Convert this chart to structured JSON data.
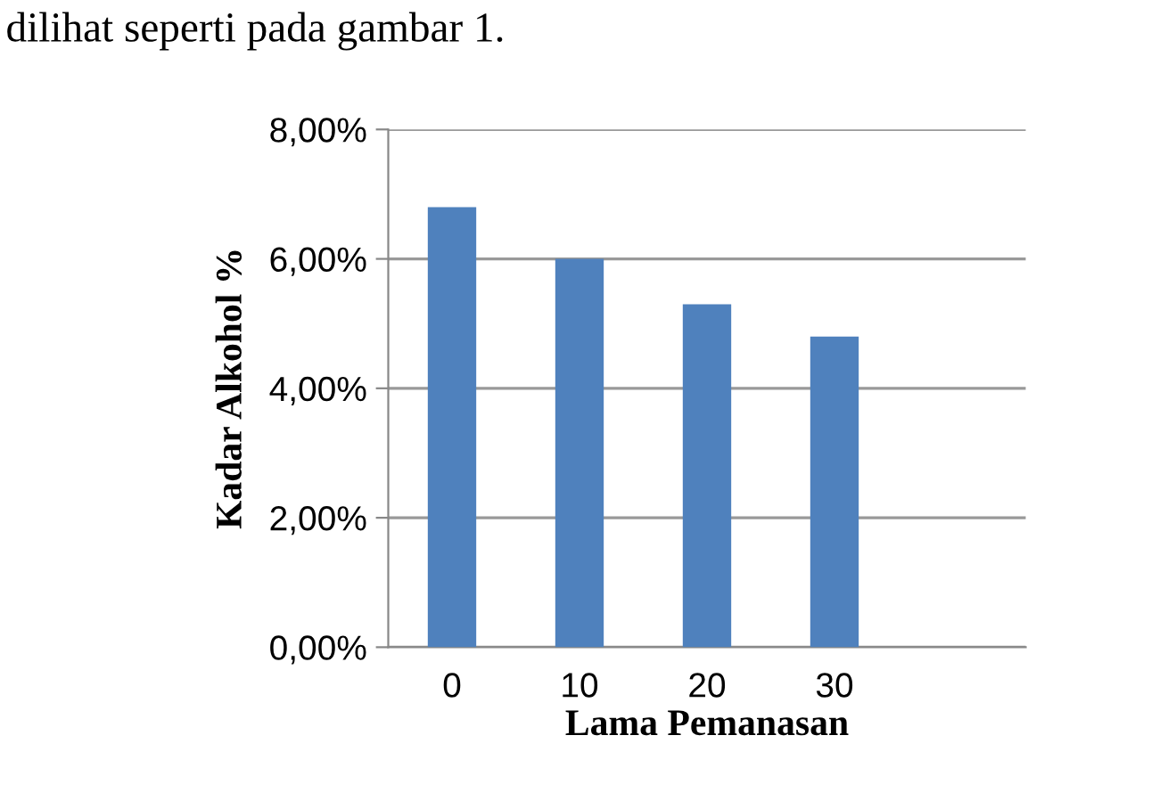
{
  "chart_data": {
    "type": "bar",
    "xlabel": "Lama Pemanasan",
    "ylabel": "Kadar Alkohol %",
    "annotations": [
      "dilihat seperti pada gambar 1."
    ],
    "categories": [
      "0",
      "10",
      "20",
      "30",
      null
    ],
    "values": [
      6.8,
      6.0,
      5.3,
      4.8,
      null
    ],
    "color": "#4f81bd",
    "ylim": [
      0,
      8
    ],
    "yticks": [
      {
        "value": 0,
        "label": "0,00%"
      },
      {
        "value": 2,
        "label": "2,00%"
      },
      {
        "value": 4,
        "label": "4,00%"
      },
      {
        "value": 6,
        "label": "6,00%"
      },
      {
        "value": 8,
        "label": "8,00%"
      }
    ],
    "grid": "y"
  }
}
